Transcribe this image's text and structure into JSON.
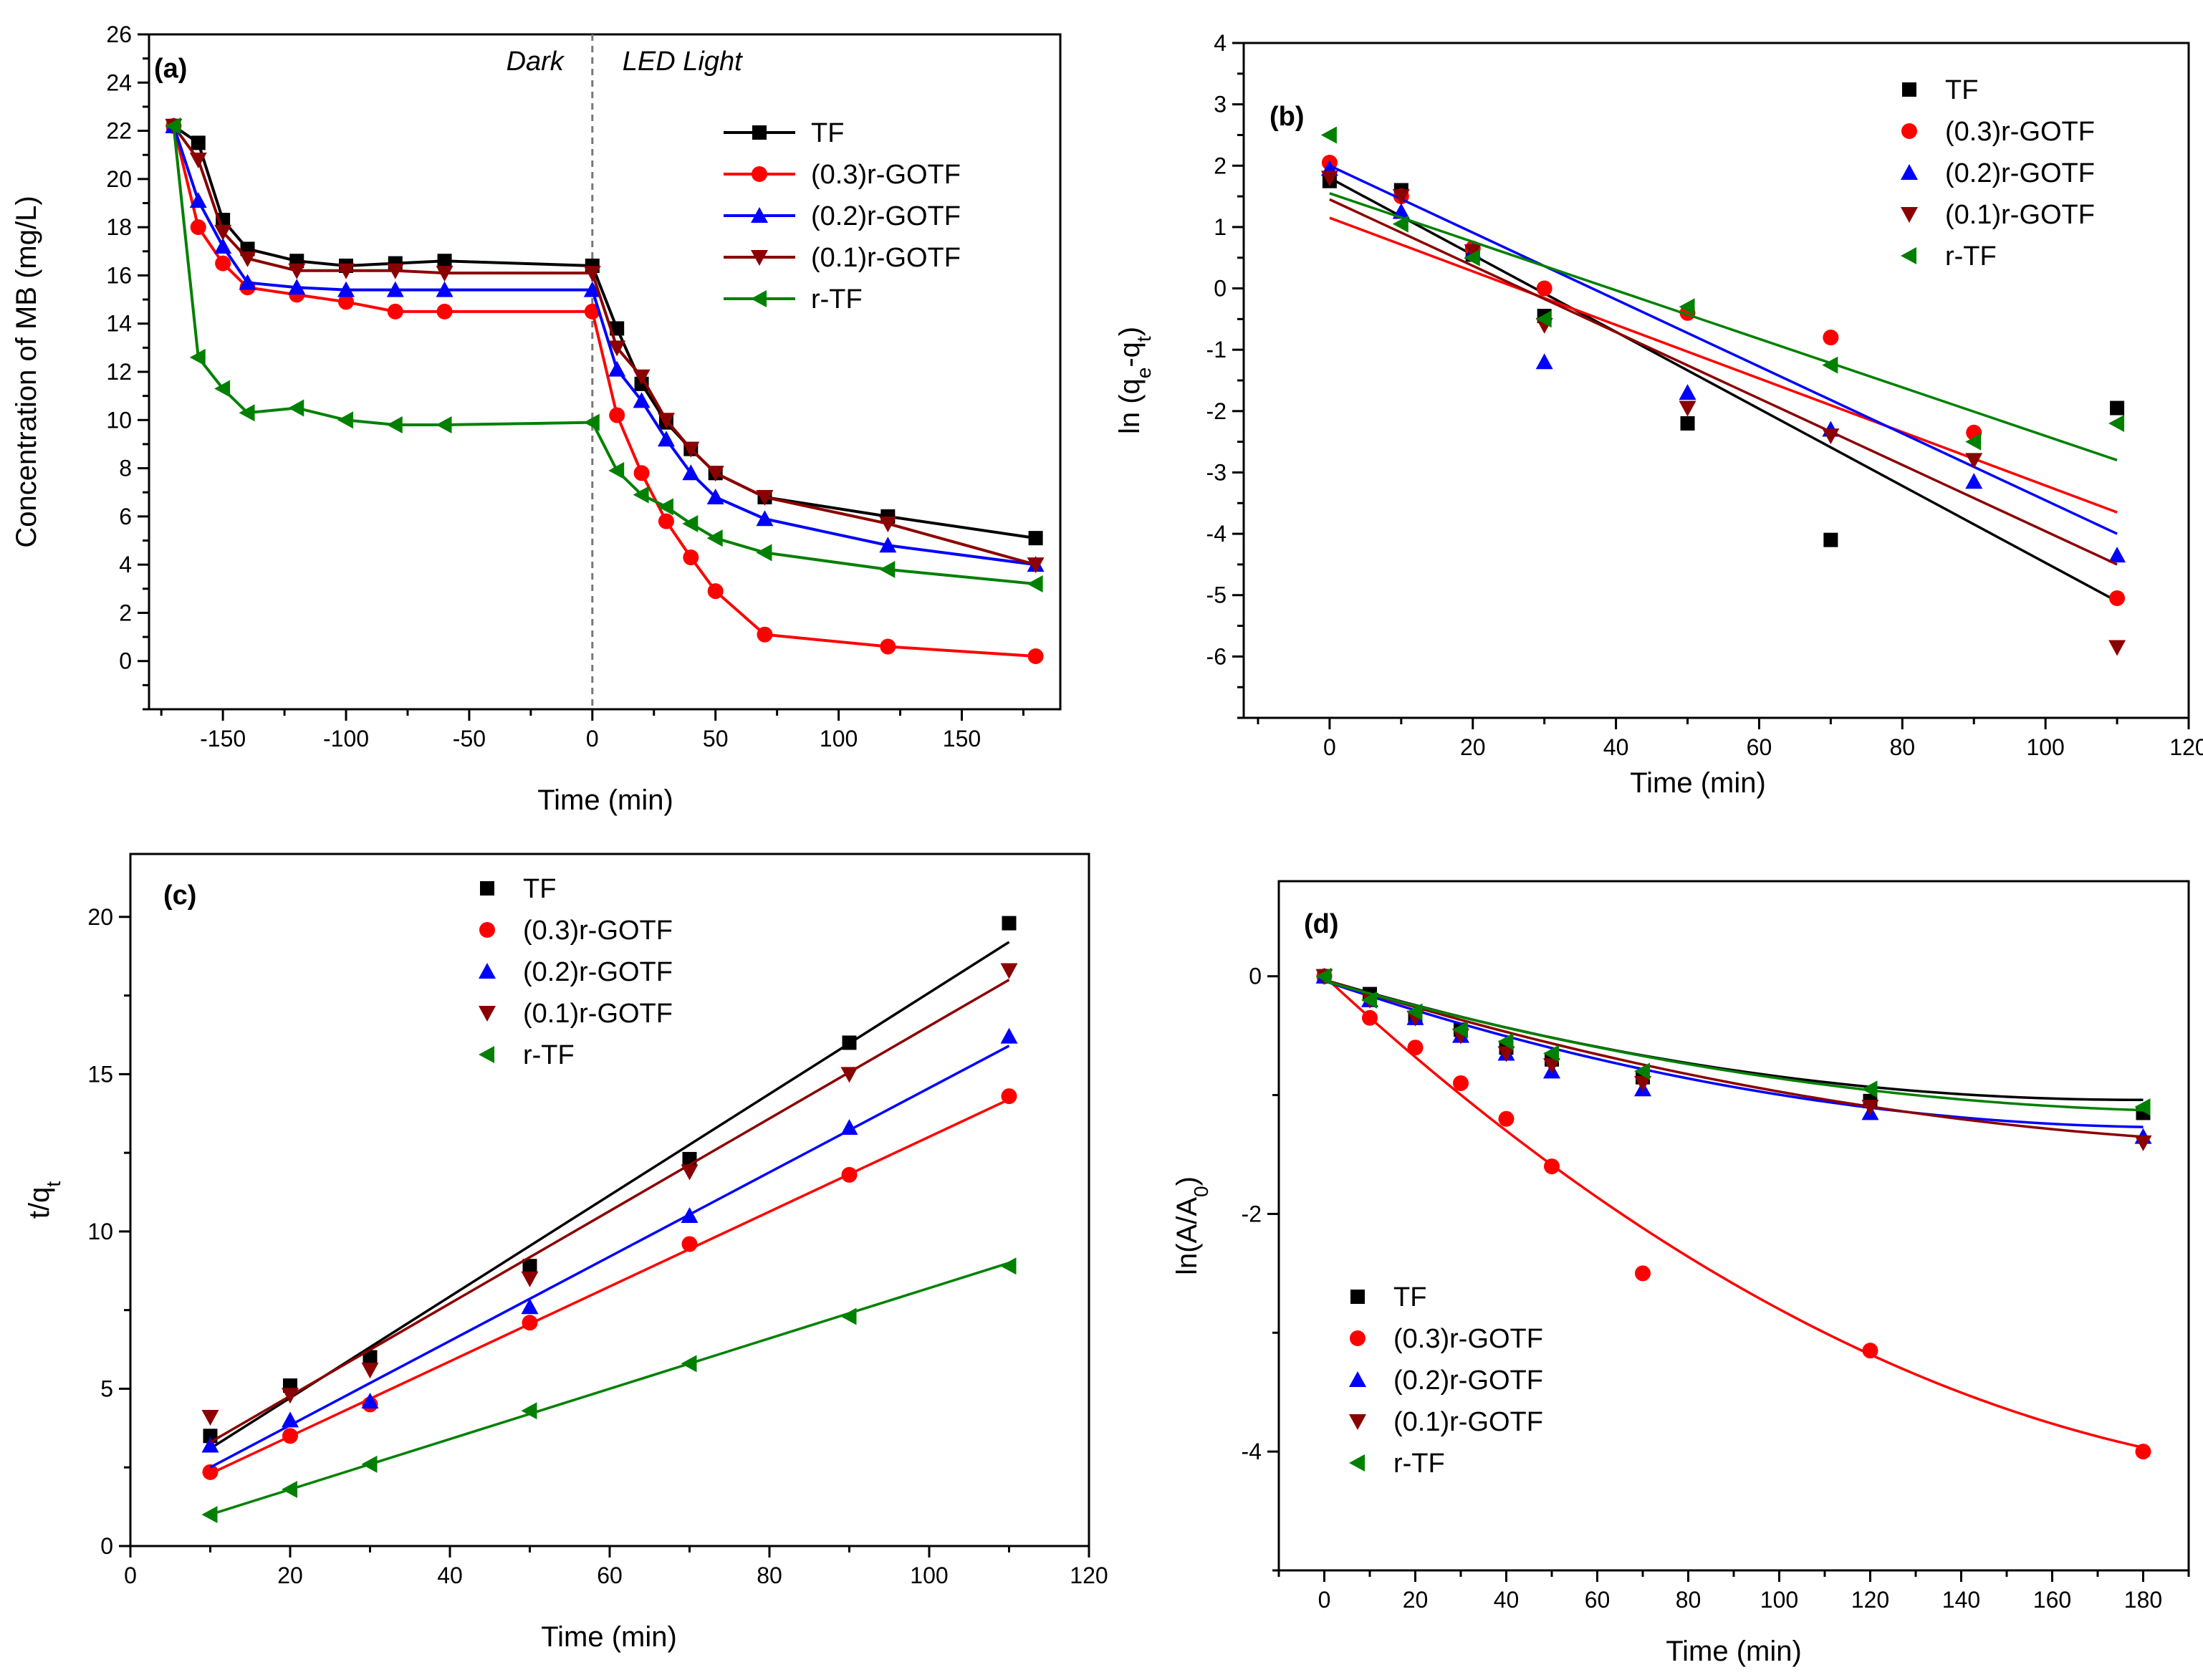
{
  "colors": {
    "TF": "#000000",
    "(0.3)r-GOTF": "#ff0000",
    "(0.2)r-GOTF": "#0000ff",
    "(0.1)r-GOTF": "#8b0000",
    "r-TF": "#008000"
  },
  "markers": {
    "TF": "square",
    "(0.3)r-GOTF": "circle",
    "(0.2)r-GOTF": "triangle-up",
    "(0.1)r-GOTF": "triangle-down",
    "r-TF": "triangle-left"
  },
  "chart_data": [
    {
      "panel": "(a)",
      "type": "line",
      "xlabel": "Time (min)",
      "ylabel": "Concentration of MB (mg/L)",
      "xlim": [
        -180,
        190
      ],
      "ylim": [
        -2,
        26
      ],
      "xticks": [
        -150,
        -100,
        -50,
        0,
        50,
        100,
        150
      ],
      "yticks": [
        0,
        2,
        4,
        6,
        8,
        10,
        12,
        14,
        16,
        18,
        20,
        22,
        24,
        26
      ],
      "regions": [
        "Dark",
        "LED Light"
      ],
      "divider_x": 0,
      "legend_position": "top-right",
      "series": [
        {
          "name": "TF",
          "x": [
            -170,
            -160,
            -150,
            -140,
            -120,
            -100,
            -80,
            -60,
            0,
            10,
            20,
            30,
            40,
            50,
            70,
            120,
            180
          ],
          "y": [
            22.2,
            21.5,
            18.3,
            17.1,
            16.6,
            16.4,
            16.5,
            16.6,
            16.4,
            13.8,
            11.5,
            9.9,
            8.8,
            7.8,
            6.8,
            6.0,
            5.1
          ]
        },
        {
          "name": "(0.3)r-GOTF",
          "x": [
            -170,
            -160,
            -150,
            -140,
            -120,
            -100,
            -80,
            -60,
            0,
            10,
            20,
            30,
            40,
            50,
            70,
            120,
            180
          ],
          "y": [
            22.2,
            18.0,
            16.5,
            15.5,
            15.2,
            14.9,
            14.5,
            14.5,
            14.5,
            10.2,
            7.8,
            5.8,
            4.3,
            2.9,
            1.1,
            0.6,
            0.2
          ]
        },
        {
          "name": "(0.2)r-GOTF",
          "x": [
            -170,
            -160,
            -150,
            -140,
            -120,
            -100,
            -80,
            -60,
            0,
            10,
            20,
            30,
            40,
            50,
            70,
            120,
            180
          ],
          "y": [
            22.2,
            19.1,
            17.2,
            15.7,
            15.5,
            15.4,
            15.4,
            15.4,
            15.4,
            12.1,
            10.8,
            9.2,
            7.8,
            6.8,
            5.9,
            4.8,
            4.0
          ]
        },
        {
          "name": "(0.1)r-GOTF",
          "x": [
            -170,
            -160,
            -150,
            -140,
            -120,
            -100,
            -80,
            -60,
            0,
            10,
            20,
            30,
            40,
            50,
            70,
            120,
            180
          ],
          "y": [
            22.2,
            20.8,
            17.8,
            16.7,
            16.2,
            16.2,
            16.2,
            16.1,
            16.1,
            13.0,
            11.8,
            10.0,
            8.8,
            7.8,
            6.8,
            5.7,
            4.0
          ]
        },
        {
          "name": "r-TF",
          "x": [
            -170,
            -160,
            -150,
            -140,
            -120,
            -100,
            -80,
            -60,
            0,
            10,
            20,
            30,
            40,
            50,
            70,
            120,
            180
          ],
          "y": [
            22.2,
            12.6,
            11.3,
            10.3,
            10.5,
            10.0,
            9.8,
            9.8,
            9.9,
            7.9,
            6.9,
            6.4,
            5.7,
            5.1,
            4.5,
            3.8,
            3.2
          ]
        }
      ]
    },
    {
      "panel": "(b)",
      "type": "scatter",
      "xlabel": "Time (min)",
      "ylabel": "ln (q",
      "ylabel_sub1": "e",
      "ylabel_mid": "-q",
      "ylabel_sub2": "t",
      "ylabel_end": ")",
      "xlim": [
        -12,
        120
      ],
      "ylim": [
        -7,
        4
      ],
      "xticks": [
        0,
        20,
        40,
        60,
        80,
        100,
        120
      ],
      "yticks": [
        -6,
        -5,
        -4,
        -3,
        -2,
        -1,
        0,
        1,
        2,
        3,
        4
      ],
      "legend_position": "top-right",
      "series": [
        {
          "name": "TF",
          "x": [
            0,
            10,
            20,
            30,
            50,
            70,
            110
          ],
          "y": [
            1.75,
            1.6,
            0.55,
            -0.45,
            -2.2,
            -4.1,
            -1.95
          ],
          "fit": [
            [
              0,
              1.8
            ],
            [
              110,
              -5.1
            ]
          ]
        },
        {
          "name": "(0.3)r-GOTF",
          "x": [
            0,
            10,
            20,
            30,
            50,
            70,
            90,
            110
          ],
          "y": [
            2.05,
            1.5,
            0.65,
            0.0,
            -0.4,
            -0.8,
            -2.35,
            -5.05
          ],
          "fit": [
            [
              0,
              1.15
            ],
            [
              110,
              -3.65
            ]
          ]
        },
        {
          "name": "(0.2)r-GOTF",
          "x": [
            0,
            10,
            20,
            30,
            50,
            70,
            90,
            110
          ],
          "y": [
            1.95,
            1.25,
            0.6,
            -1.2,
            -1.7,
            -2.3,
            -3.15,
            -4.35
          ],
          "fit": [
            [
              0,
              2.0
            ],
            [
              110,
              -4.0
            ]
          ]
        },
        {
          "name": "(0.1)r-GOTF",
          "x": [
            0,
            10,
            20,
            30,
            50,
            70,
            90,
            110
          ],
          "y": [
            1.8,
            1.5,
            0.6,
            -0.6,
            -1.95,
            -2.4,
            -2.8,
            -5.85
          ],
          "fit": [
            [
              0,
              1.45
            ],
            [
              110,
              -4.5
            ]
          ]
        },
        {
          "name": "r-TF",
          "x": [
            0,
            10,
            20,
            30,
            50,
            70,
            90,
            110
          ],
          "y": [
            2.5,
            1.05,
            0.5,
            -0.5,
            -0.3,
            -1.25,
            -2.5,
            -2.2
          ],
          "fit": [
            [
              0,
              1.55
            ],
            [
              110,
              -2.8
            ]
          ]
        }
      ]
    },
    {
      "panel": "(c)",
      "type": "scatter",
      "xlabel": "Time (min)",
      "ylabel": "t/q",
      "ylabel_sub": "t",
      "xlim": [
        0,
        120
      ],
      "ylim": [
        0,
        22
      ],
      "xticks": [
        0,
        20,
        40,
        60,
        80,
        100,
        120
      ],
      "yticks": [
        0,
        5,
        10,
        15,
        20
      ],
      "legend_position": "top-center",
      "series": [
        {
          "name": "TF",
          "x": [
            10,
            20,
            30,
            50,
            70,
            90,
            110
          ],
          "y": [
            3.5,
            5.1,
            6.0,
            8.9,
            12.3,
            16.0,
            19.8
          ],
          "fit": [
            [
              10,
              3.1
            ],
            [
              110,
              19.2
            ]
          ]
        },
        {
          "name": "(0.3)r-GOTF",
          "x": [
            10,
            20,
            30,
            50,
            70,
            90,
            110
          ],
          "y": [
            2.35,
            3.5,
            4.5,
            7.1,
            9.6,
            11.8,
            14.3
          ],
          "fit": [
            [
              10,
              2.3
            ],
            [
              110,
              14.2
            ]
          ]
        },
        {
          "name": "(0.2)r-GOTF",
          "x": [
            10,
            20,
            30,
            50,
            70,
            90,
            110
          ],
          "y": [
            3.2,
            4.0,
            4.6,
            7.6,
            10.5,
            13.3,
            16.2
          ],
          "fit": [
            [
              10,
              2.5
            ],
            [
              110,
              15.9
            ]
          ]
        },
        {
          "name": "(0.1)r-GOTF",
          "x": [
            10,
            20,
            30,
            50,
            70,
            90,
            110
          ],
          "y": [
            4.1,
            4.8,
            5.6,
            8.5,
            11.9,
            15.0,
            18.3
          ],
          "fit": [
            [
              10,
              3.3
            ],
            [
              110,
              18.0
            ]
          ]
        },
        {
          "name": "r-TF",
          "x": [
            10,
            20,
            30,
            50,
            70,
            90,
            110
          ],
          "y": [
            1.0,
            1.8,
            2.6,
            4.3,
            5.8,
            7.3,
            8.9
          ],
          "fit": [
            [
              10,
              1.0
            ],
            [
              110,
              9.0
            ]
          ]
        }
      ]
    },
    {
      "panel": "(d)",
      "type": "scatter",
      "xlabel": "Time (min)",
      "ylabel": "ln(A/A",
      "ylabel_sub": "0",
      "ylabel_end": ")",
      "xlim": [
        -10,
        190
      ],
      "ylim": [
        -5,
        0.8
      ],
      "xticks": [
        0,
        20,
        40,
        60,
        80,
        100,
        120,
        140,
        160,
        180
      ],
      "yticks": [
        -4,
        -2,
        0
      ],
      "legend_position": "bottom-left",
      "series": [
        {
          "name": "TF",
          "x": [
            0,
            10,
            20,
            30,
            40,
            50,
            70,
            120,
            180
          ],
          "y": [
            0,
            -0.15,
            -0.35,
            -0.45,
            -0.6,
            -0.7,
            -0.85,
            -1.05,
            -1.15
          ],
          "fit": {
            "a": 3.16e-05,
            "b": -0.0113,
            "c": -0.03
          }
        },
        {
          "name": "(0.3)r-GOTF",
          "x": [
            0,
            10,
            20,
            30,
            40,
            50,
            70,
            120,
            180
          ],
          "y": [
            0,
            -0.35,
            -0.6,
            -0.9,
            -1.2,
            -1.6,
            -2.5,
            -3.15,
            -4.0
          ],
          "fit": {
            "a": 7.48e-05,
            "b": -0.0355,
            "c": 0.0
          }
        },
        {
          "name": "(0.2)r-GOTF",
          "x": [
            0,
            10,
            20,
            30,
            40,
            50,
            70,
            120,
            180
          ],
          "y": [
            0,
            -0.2,
            -0.35,
            -0.5,
            -0.65,
            -0.8,
            -0.95,
            -1.15,
            -1.35
          ],
          "fit": {
            "a": 3.43e-05,
            "b": -0.013,
            "c": -0.04
          }
        },
        {
          "name": "(0.1)r-GOTF",
          "x": [
            0,
            10,
            20,
            30,
            40,
            50,
            70,
            120,
            180
          ],
          "y": [
            0,
            -0.2,
            -0.35,
            -0.5,
            -0.65,
            -0.75,
            -0.9,
            -1.1,
            -1.4
          ],
          "fit": {
            "a": 2.59e-05,
            "b": -0.012,
            "c": -0.03
          }
        },
        {
          "name": "r-TF",
          "x": [
            0,
            10,
            20,
            30,
            40,
            50,
            70,
            120,
            180
          ],
          "y": [
            0,
            -0.2,
            -0.3,
            -0.45,
            -0.55,
            -0.65,
            -0.8,
            -0.95,
            -1.1
          ],
          "fit": {
            "a": 2.7e-05,
            "b": -0.0109,
            "c": -0.04
          }
        }
      ]
    }
  ]
}
